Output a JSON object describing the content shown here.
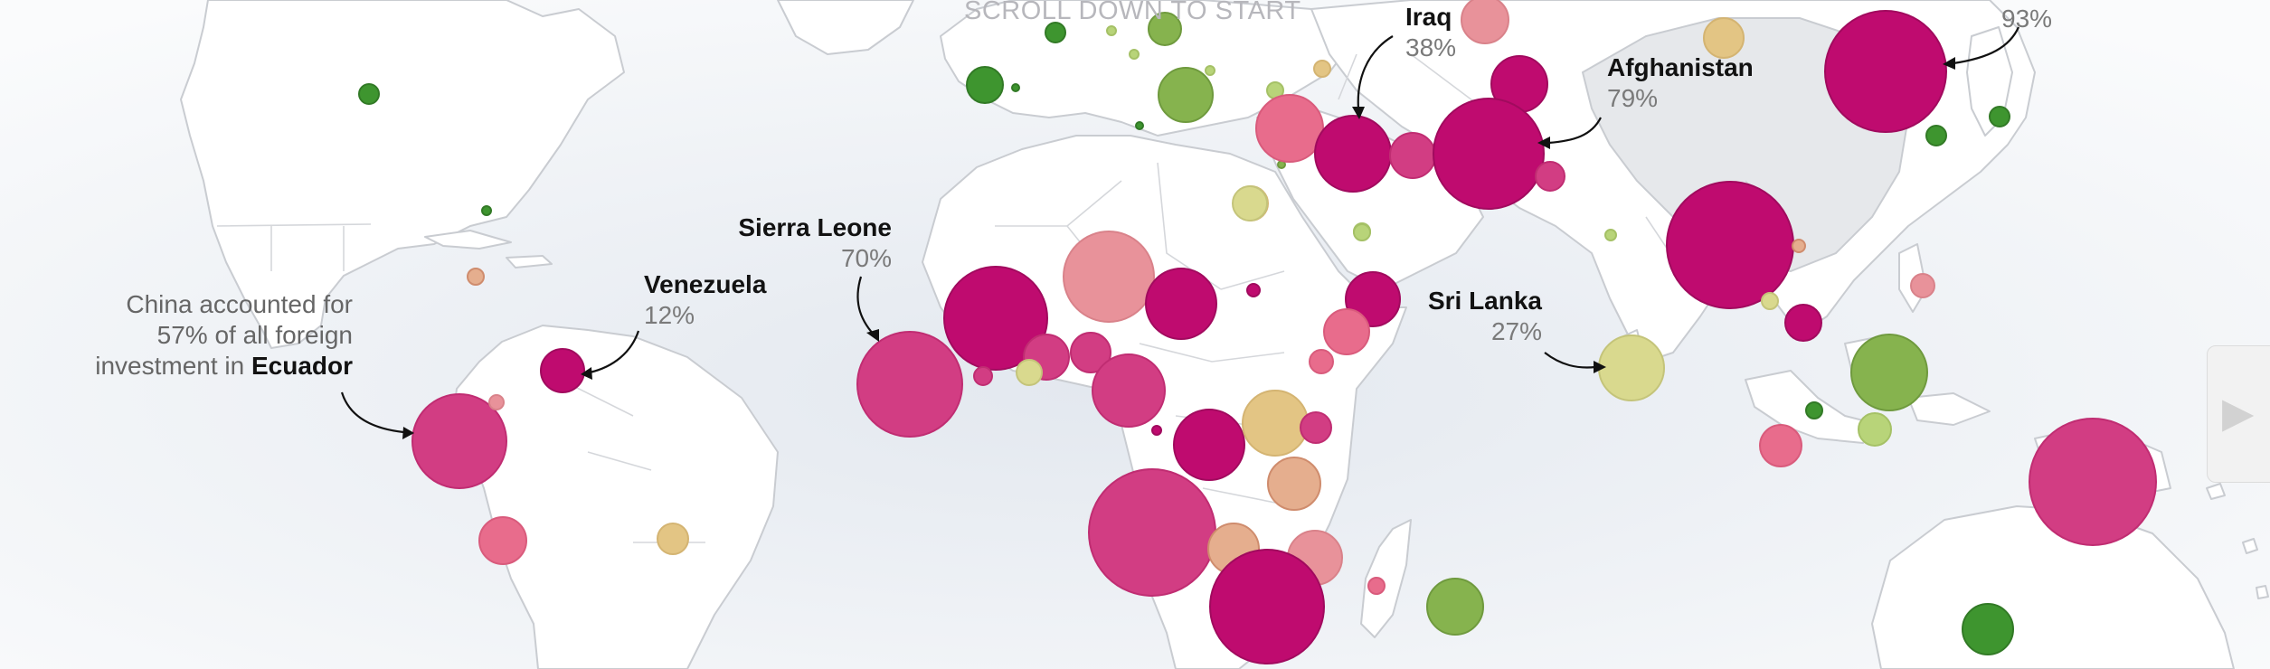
{
  "hint": {
    "scroll": "SCROLL DOWN TO START"
  },
  "colors": {
    "ocean": "#eef1f5",
    "land": "#ffffff",
    "china_shade": "#e6e8eb",
    "magenta_dark": "#bf0b6f",
    "magenta": "#d23d83",
    "pink": "#e86c8c",
    "salmon": "#e8929a",
    "peach": "#e5ae8e",
    "tan": "#e3c584",
    "khaki": "#d9d98e",
    "light_green": "#b8d479",
    "green": "#86b34e",
    "dark_green": "#3e952f"
  },
  "annotations": {
    "ecuador": {
      "line1": "China accounted for",
      "line2": "57% of all foreign",
      "line3_prefix": "investment in",
      "name": "Ecuador"
    },
    "venezuela": {
      "name": "Venezuela",
      "value": "12%"
    },
    "sierra_leone": {
      "name": "Sierra Leone",
      "value": "70%"
    },
    "iraq": {
      "name": "Iraq",
      "value": "38%"
    },
    "afghanistan": {
      "name": "Afghanistan",
      "value": "79%"
    },
    "sri_lanka": {
      "name": "Sri Lanka",
      "value": "27%"
    },
    "top_right": {
      "value": "93%"
    }
  },
  "controls": {
    "next_icon": "play-arrow-icon"
  }
}
